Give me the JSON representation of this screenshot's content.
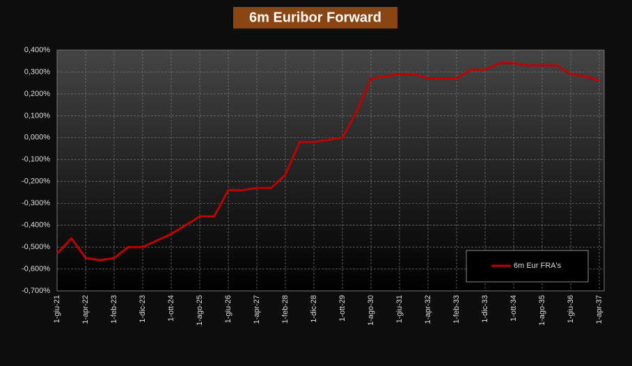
{
  "chart_data": {
    "type": "line",
    "title": "6m Euribor Forward",
    "categories": [
      "1-giu-21",
      null,
      "1-apr-22",
      null,
      "1-feb-23",
      null,
      "1-dic-23",
      null,
      "1-ott-24",
      null,
      "1-ago-25",
      null,
      "1-giu-26",
      null,
      "1-apr-27",
      null,
      "1-feb-28",
      null,
      "1-dic-28",
      null,
      "1-ott-29",
      null,
      "1-ago-30",
      null,
      "1-giu-31",
      null,
      "1-apr-32",
      null,
      "1-feb-33",
      null,
      "1-dic-33",
      null,
      "1-ott-34",
      null,
      "1-ago-35",
      null,
      "1-giu-36",
      null,
      "1-apr-37"
    ],
    "series": [
      {
        "name": "6m Eur FRA's",
        "color": "#c00000",
        "values": [
          -0.53,
          -0.46,
          -0.55,
          -0.56,
          -0.55,
          -0.5,
          -0.5,
          -0.47,
          -0.44,
          -0.4,
          -0.36,
          -0.36,
          -0.24,
          -0.24,
          -0.23,
          -0.23,
          -0.17,
          -0.02,
          -0.02,
          -0.01,
          0.0,
          0.12,
          0.27,
          0.28,
          0.29,
          0.29,
          0.27,
          0.27,
          0.27,
          0.31,
          0.31,
          0.34,
          0.34,
          0.33,
          0.33,
          0.33,
          0.29,
          0.28,
          0.26
        ]
      }
    ],
    "ylim": [
      -0.7,
      0.4
    ],
    "yticks": [
      {
        "value": -0.7,
        "label": "-0,700%"
      },
      {
        "value": -0.6,
        "label": "-0,600%"
      },
      {
        "value": -0.5,
        "label": "-0,500%"
      },
      {
        "value": -0.4,
        "label": "-0,400%"
      },
      {
        "value": -0.3,
        "label": "-0,300%"
      },
      {
        "value": -0.2,
        "label": "-0,200%"
      },
      {
        "value": -0.1,
        "label": "-0,100%"
      },
      {
        "value": 0,
        "label": "0,000%"
      },
      {
        "value": 0.1,
        "label": "0,100%"
      },
      {
        "value": 0.2,
        "label": "0,200%"
      },
      {
        "value": 0.3,
        "label": "0,300%"
      },
      {
        "value": 0.4,
        "label": "0,400%"
      }
    ],
    "grid": true
  }
}
